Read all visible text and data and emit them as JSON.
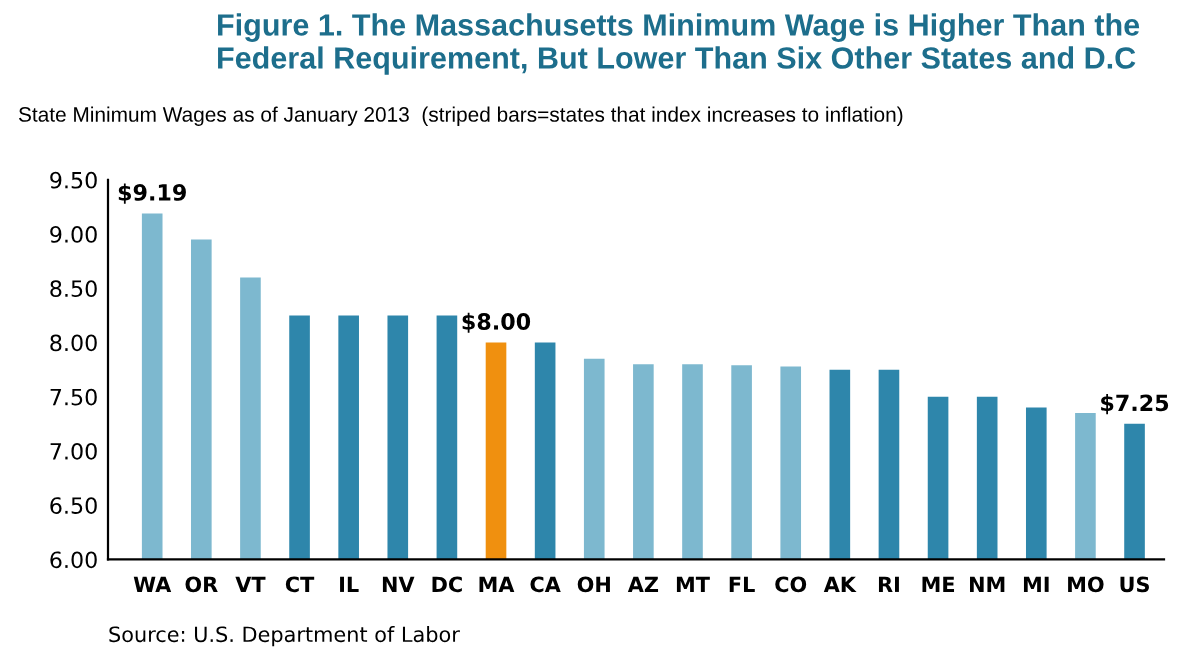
{
  "chart_data": {
    "type": "bar",
    "title": "Figure 1. The Massachusetts Minimum Wage is Higher Than the\nFederal Requirement, But Lower Than Six Other States and D.C",
    "subtitle": "State Minimum Wages as of January 2013  (striped bars=states that index increases to inflation)",
    "categories": [
      "WA",
      "OR",
      "VT",
      "CT",
      "IL",
      "NV",
      "DC",
      "MA",
      "CA",
      "OH",
      "AZ",
      "MT",
      "FL",
      "CO",
      "AK",
      "RI",
      "ME",
      "NM",
      "MI",
      "MO",
      "US"
    ],
    "values": [
      9.19,
      8.95,
      8.6,
      8.25,
      8.25,
      8.25,
      8.25,
      8.0,
      8.0,
      7.85,
      7.8,
      7.8,
      7.79,
      7.78,
      7.75,
      7.75,
      7.5,
      7.5,
      7.4,
      7.35,
      7.25
    ],
    "colors": [
      "#7db8cf",
      "#7db8cf",
      "#7db8cf",
      "#2e86ab",
      "#2e86ab",
      "#2e86ab",
      "#2e86ab",
      "#f0900f",
      "#2e86ab",
      "#7db8cf",
      "#7db8cf",
      "#7db8cf",
      "#7db8cf",
      "#7db8cf",
      "#2e86ab",
      "#2e86ab",
      "#2e86ab",
      "#2e86ab",
      "#2e86ab",
      "#7db8cf",
      "#2e86ab"
    ],
    "value_labels": [
      "$9.19",
      null,
      null,
      null,
      null,
      null,
      null,
      "$8.00",
      null,
      null,
      null,
      null,
      null,
      null,
      null,
      null,
      null,
      null,
      null,
      null,
      "$7.25"
    ],
    "ylim": [
      6.0,
      9.5
    ],
    "yticks": [
      {
        "value": 6.0,
        "label": "6.00"
      },
      {
        "value": 6.5,
        "label": "6.50"
      },
      {
        "value": 7.0,
        "label": "7.00"
      },
      {
        "value": 7.5,
        "label": "7.50"
      },
      {
        "value": 8.0,
        "label": "8.00"
      },
      {
        "value": 8.5,
        "label": "8.50"
      },
      {
        "value": 9.0,
        "label": "9.00"
      },
      {
        "value": 9.5,
        "label": "9.50"
      }
    ],
    "annotations": [
      "Source: U.S. Department of Labor"
    ],
    "grid": false,
    "legend": false
  }
}
